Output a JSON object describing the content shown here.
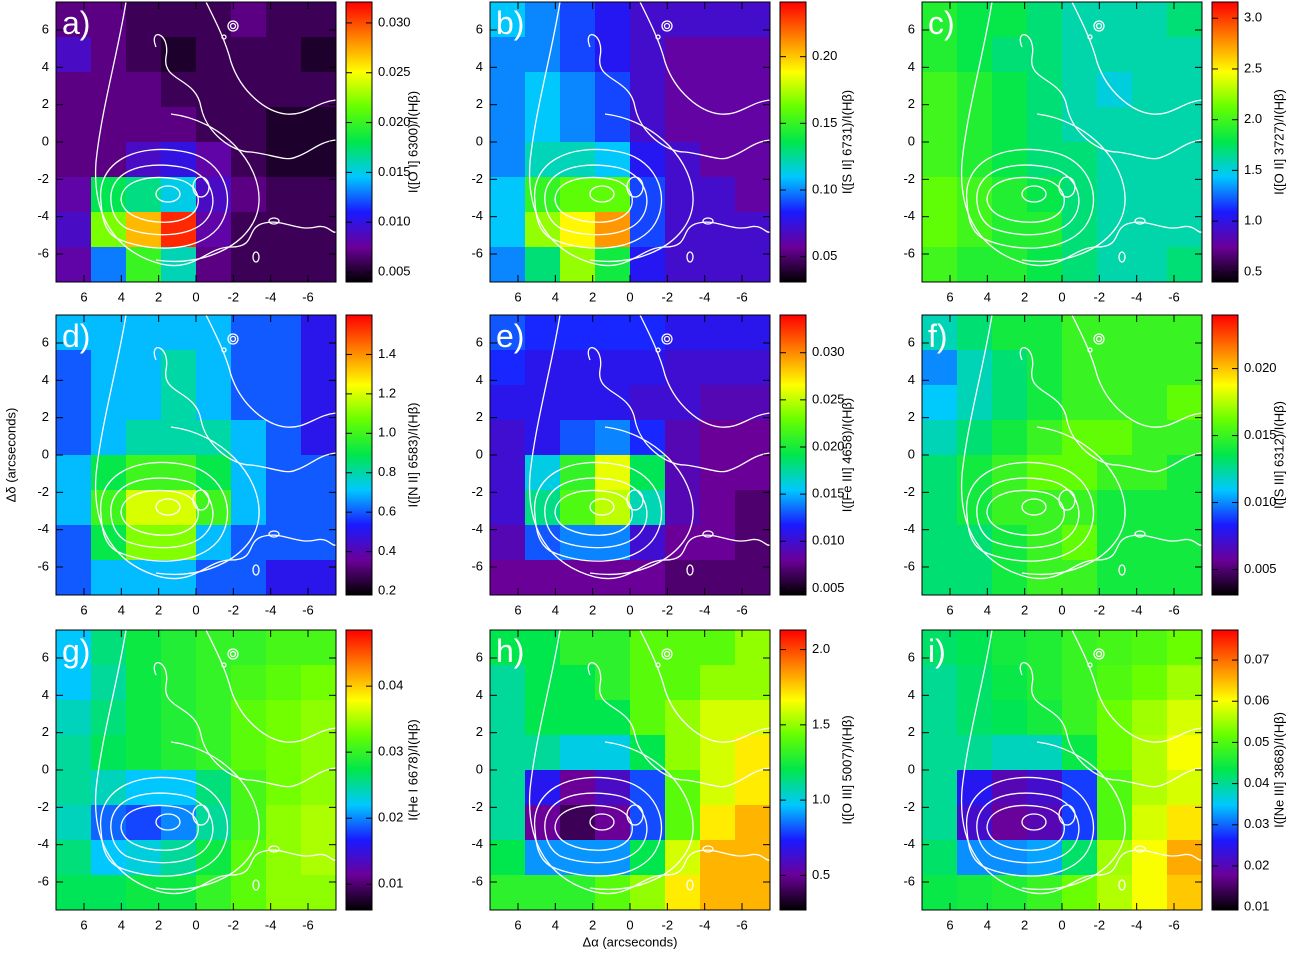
{
  "chart_data": [
    {
      "type": "heatmap",
      "panel_label": "a)",
      "colorbar_label": "I([O I] 6300)/I(Hβ)",
      "xlim": [
        7.5,
        -7.5
      ],
      "ylim": [
        -7.5,
        7.5
      ],
      "xticks": [
        6,
        4,
        2,
        0,
        -2,
        -4,
        -6
      ],
      "yticks": [
        -6,
        -4,
        -2,
        0,
        2,
        4,
        6
      ],
      "clim": [
        0.004,
        0.0321
      ],
      "cticks": [
        0.005,
        {
          "value": 0.01,
          "label": "0.010"
        },
        0.015,
        {
          "value": 0.02,
          "label": "0.020"
        },
        0.025,
        {
          "value": 0.03,
          "label": "0.030"
        }
      ],
      "colormap": [
        "#000000",
        "#6b0099",
        "#1a1aff",
        "#00c8ff",
        "#00e64d",
        "#66ff00",
        "#ffff00",
        "#ff8000",
        "#ff0000"
      ],
      "values": [
        [
          0.007,
          0.007,
          0.006,
          0.006,
          0.006,
          0.007,
          0.006,
          0.006
        ],
        [
          0.009,
          0.007,
          0.006,
          0.005,
          0.006,
          0.006,
          0.006,
          0.005
        ],
        [
          0.007,
          0.007,
          0.007,
          0.006,
          0.006,
          0.006,
          0.006,
          0.006
        ],
        [
          0.007,
          0.007,
          0.007,
          0.007,
          0.006,
          0.006,
          0.005,
          0.005
        ],
        [
          0.007,
          0.007,
          0.009,
          0.01,
          0.008,
          0.006,
          0.005,
          0.005
        ],
        [
          0.008,
          0.018,
          0.017,
          0.015,
          0.009,
          0.007,
          0.006,
          0.006
        ],
        [
          0.009,
          0.022,
          0.027,
          0.031,
          0.008,
          0.006,
          0.006,
          0.006
        ],
        [
          0.008,
          0.013,
          0.02,
          0.016,
          0.007,
          0.006,
          0.006,
          0.006
        ]
      ]
    },
    {
      "type": "heatmap",
      "panel_label": "b)",
      "colorbar_label": "I([S II] 6731)/I(Hβ)",
      "xlim": [
        7.5,
        -7.5
      ],
      "ylim": [
        -7.5,
        7.5
      ],
      "xticks": [
        6,
        4,
        2,
        0,
        -2,
        -4,
        -6
      ],
      "yticks": [
        -6,
        -4,
        -2,
        0,
        2,
        4,
        6
      ],
      "clim": [
        0.031,
        0.241
      ],
      "cticks": [
        0.05,
        {
          "value": 0.1,
          "label": "0.10"
        },
        0.15,
        {
          "value": 0.2,
          "label": "0.20"
        }
      ],
      "colormap": [
        "#000000",
        "#6b0099",
        "#1a1aff",
        "#00c8ff",
        "#00e64d",
        "#66ff00",
        "#ffff00",
        "#ff8000",
        "#ff0000"
      ],
      "values": [
        [
          0.11,
          0.1,
          0.09,
          0.08,
          0.07,
          0.07,
          0.07,
          0.07
        ],
        [
          0.1,
          0.1,
          0.09,
          0.08,
          0.07,
          0.06,
          0.06,
          0.06
        ],
        [
          0.1,
          0.11,
          0.1,
          0.09,
          0.07,
          0.06,
          0.06,
          0.06
        ],
        [
          0.1,
          0.11,
          0.1,
          0.09,
          0.07,
          0.06,
          0.06,
          0.06
        ],
        [
          0.1,
          0.12,
          0.12,
          0.11,
          0.08,
          0.07,
          0.06,
          0.06
        ],
        [
          0.11,
          0.15,
          0.16,
          0.16,
          0.09,
          0.07,
          0.07,
          0.06
        ],
        [
          0.11,
          0.17,
          0.19,
          0.21,
          0.09,
          0.07,
          0.07,
          0.07
        ],
        [
          0.1,
          0.13,
          0.17,
          0.14,
          0.08,
          0.07,
          0.07,
          0.07
        ]
      ]
    },
    {
      "type": "heatmap",
      "panel_label": "c)",
      "colorbar_label": "I([O II] 3727)/I(Hβ)",
      "xlim": [
        7.5,
        -7.5
      ],
      "ylim": [
        -7.5,
        7.5
      ],
      "xticks": [
        6,
        4,
        2,
        0,
        -2,
        -4,
        -6
      ],
      "yticks": [
        -6,
        -4,
        -2,
        0,
        2,
        4,
        6
      ],
      "clim": [
        0.4,
        3.16
      ],
      "cticks": [
        0.5,
        {
          "value": 1,
          "label": "1.0"
        },
        1.5,
        {
          "value": 2,
          "label": "2.0"
        },
        2.5,
        {
          "value": 3,
          "label": "3.0"
        }
      ],
      "colormap": [
        "#000000",
        "#6b0099",
        "#1a1aff",
        "#00c8ff",
        "#00e64d",
        "#66ff00",
        "#ffff00",
        "#ff8000",
        "#ff0000"
      ],
      "values": [
        [
          1.9,
          1.8,
          1.8,
          1.7,
          1.6,
          1.6,
          1.6,
          1.7
        ],
        [
          1.9,
          1.8,
          1.7,
          1.7,
          1.6,
          1.6,
          1.6,
          1.6
        ],
        [
          2.0,
          1.9,
          1.8,
          1.7,
          1.6,
          1.5,
          1.6,
          1.6
        ],
        [
          2.0,
          1.9,
          1.8,
          1.7,
          1.6,
          1.6,
          1.6,
          1.6
        ],
        [
          2.0,
          1.9,
          1.8,
          1.7,
          1.7,
          1.6,
          1.6,
          1.6
        ],
        [
          2.1,
          2.0,
          1.9,
          1.8,
          1.7,
          1.6,
          1.6,
          1.6
        ],
        [
          2.1,
          2.0,
          1.9,
          1.9,
          1.7,
          1.6,
          1.6,
          1.6
        ],
        [
          2.0,
          1.9,
          1.9,
          1.8,
          1.7,
          1.6,
          1.6,
          1.7
        ]
      ]
    },
    {
      "type": "heatmap",
      "panel_label": "d)",
      "colorbar_label": "I([N II] 6583)/I(Hβ)",
      "ylabel": "Δδ (arcseconds)",
      "xlim": [
        7.5,
        -7.5
      ],
      "ylim": [
        -7.5,
        7.5
      ],
      "xticks": [
        6,
        4,
        2,
        0,
        -2,
        -4,
        -6
      ],
      "yticks": [
        -6,
        -4,
        -2,
        0,
        2,
        4,
        6
      ],
      "clim": [
        0.18,
        1.6
      ],
      "cticks": [
        0.2,
        0.4,
        0.6,
        0.8,
        {
          "value": 1,
          "label": "1.0"
        },
        1.2,
        1.4
      ],
      "colormap": [
        "#000000",
        "#6b0099",
        "#1a1aff",
        "#00c8ff",
        "#00e64d",
        "#66ff00",
        "#ffff00",
        "#ff8000",
        "#ff0000"
      ],
      "values": [
        [
          0.7,
          0.7,
          0.7,
          0.7,
          0.7,
          0.6,
          0.6,
          0.5
        ],
        [
          0.6,
          0.7,
          0.7,
          0.8,
          0.7,
          0.6,
          0.6,
          0.5
        ],
        [
          0.6,
          0.7,
          0.7,
          0.8,
          0.7,
          0.6,
          0.6,
          0.5
        ],
        [
          0.6,
          0.7,
          0.8,
          0.8,
          0.8,
          0.7,
          0.6,
          0.5
        ],
        [
          0.7,
          0.9,
          1.0,
          1.0,
          0.9,
          0.7,
          0.6,
          0.6
        ],
        [
          0.7,
          1.0,
          1.2,
          1.2,
          1.0,
          0.7,
          0.6,
          0.6
        ],
        [
          0.6,
          0.9,
          1.1,
          1.1,
          0.7,
          0.6,
          0.6,
          0.6
        ],
        [
          0.6,
          0.7,
          0.7,
          0.7,
          0.6,
          0.6,
          0.5,
          0.5
        ]
      ]
    },
    {
      "type": "heatmap",
      "panel_label": "e)",
      "colorbar_label": "I([Fe III] 4658)/I(Hβ)",
      "xlim": [
        7.5,
        -7.5
      ],
      "ylim": [
        -7.5,
        7.5
      ],
      "xticks": [
        6,
        4,
        2,
        0,
        -2,
        -4,
        -6
      ],
      "yticks": [
        -6,
        -4,
        -2,
        0,
        2,
        4,
        6
      ],
      "clim": [
        0.0043,
        0.034
      ],
      "cticks": [
        0.005,
        {
          "value": 0.01,
          "label": "0.010"
        },
        0.015,
        {
          "value": 0.02,
          "label": "0.020"
        },
        0.025,
        {
          "value": 0.03,
          "label": "0.030"
        }
      ],
      "colormap": [
        "#000000",
        "#6b0099",
        "#1a1aff",
        "#00c8ff",
        "#00e64d",
        "#66ff00",
        "#ffff00",
        "#ff8000",
        "#ff0000"
      ],
      "values": [
        [
          0.013,
          0.012,
          0.012,
          0.012,
          0.012,
          0.011,
          0.011,
          0.011
        ],
        [
          0.012,
          0.011,
          0.011,
          0.011,
          0.011,
          0.01,
          0.01,
          0.01
        ],
        [
          0.011,
          0.011,
          0.011,
          0.011,
          0.01,
          0.01,
          0.009,
          0.009
        ],
        [
          0.01,
          0.011,
          0.013,
          0.014,
          0.012,
          0.009,
          0.008,
          0.008
        ],
        [
          0.01,
          0.016,
          0.021,
          0.026,
          0.019,
          0.009,
          0.008,
          0.008
        ],
        [
          0.01,
          0.018,
          0.022,
          0.025,
          0.017,
          0.009,
          0.008,
          0.007
        ],
        [
          0.009,
          0.013,
          0.014,
          0.014,
          0.01,
          0.008,
          0.008,
          0.007
        ],
        [
          0.008,
          0.008,
          0.008,
          0.008,
          0.008,
          0.007,
          0.007,
          0.007
        ]
      ]
    },
    {
      "type": "heatmap",
      "panel_label": "f)",
      "colorbar_label": "I([S III] 6312)/I(Hβ)",
      "xlim": [
        7.5,
        -7.5
      ],
      "ylim": [
        -7.5,
        7.5
      ],
      "xticks": [
        6,
        4,
        2,
        0,
        -2,
        -4,
        -6
      ],
      "yticks": [
        -6,
        -4,
        -2,
        0,
        2,
        4,
        6
      ],
      "clim": [
        0.0031,
        0.024
      ],
      "cticks": [
        0.005,
        {
          "value": 0.01,
          "label": "0.010"
        },
        0.015,
        {
          "value": 0.02,
          "label": "0.020"
        }
      ],
      "colormap": [
        "#000000",
        "#6b0099",
        "#1a1aff",
        "#00c8ff",
        "#00e64d",
        "#66ff00",
        "#ffff00",
        "#ff8000",
        "#ff0000"
      ],
      "values": [
        [
          0.012,
          0.013,
          0.014,
          0.014,
          0.015,
          0.015,
          0.015,
          0.015
        ],
        [
          0.01,
          0.012,
          0.013,
          0.014,
          0.015,
          0.015,
          0.015,
          0.015
        ],
        [
          0.011,
          0.012,
          0.013,
          0.014,
          0.015,
          0.015,
          0.015,
          0.016
        ],
        [
          0.012,
          0.013,
          0.014,
          0.015,
          0.016,
          0.016,
          0.015,
          0.015
        ],
        [
          0.013,
          0.014,
          0.015,
          0.016,
          0.016,
          0.015,
          0.015,
          0.014
        ],
        [
          0.013,
          0.014,
          0.015,
          0.015,
          0.015,
          0.014,
          0.014,
          0.014
        ],
        [
          0.013,
          0.013,
          0.014,
          0.015,
          0.016,
          0.014,
          0.014,
          0.014
        ],
        [
          0.013,
          0.013,
          0.014,
          0.015,
          0.015,
          0.014,
          0.014,
          0.014
        ]
      ]
    },
    {
      "type": "heatmap",
      "panel_label": "g)",
      "colorbar_label": "I(He I 6678)/I(Hβ)",
      "xlim": [
        7.5,
        -7.5
      ],
      "ylim": [
        -7.5,
        7.5
      ],
      "xticks": [
        6,
        4,
        2,
        0,
        -2,
        -4,
        -6
      ],
      "yticks": [
        -6,
        -4,
        -2,
        0,
        2,
        4,
        6
      ],
      "clim": [
        0.0061,
        0.0485
      ],
      "cticks": [
        0.01,
        0.02,
        0.03,
        0.04
      ],
      "colormap": [
        "#000000",
        "#6b0099",
        "#1a1aff",
        "#00c8ff",
        "#00e64d",
        "#66ff00",
        "#ffff00",
        "#ff8000",
        "#ff0000"
      ],
      "values": [
        [
          0.022,
          0.026,
          0.028,
          0.029,
          0.03,
          0.03,
          0.031,
          0.031
        ],
        [
          0.022,
          0.025,
          0.028,
          0.029,
          0.03,
          0.031,
          0.032,
          0.033
        ],
        [
          0.024,
          0.026,
          0.028,
          0.029,
          0.03,
          0.032,
          0.033,
          0.034
        ],
        [
          0.025,
          0.027,
          0.028,
          0.029,
          0.03,
          0.032,
          0.033,
          0.034
        ],
        [
          0.025,
          0.024,
          0.022,
          0.022,
          0.026,
          0.031,
          0.033,
          0.034
        ],
        [
          0.024,
          0.019,
          0.018,
          0.02,
          0.025,
          0.031,
          0.034,
          0.035
        ],
        [
          0.026,
          0.022,
          0.023,
          0.025,
          0.028,
          0.032,
          0.034,
          0.035
        ],
        [
          0.027,
          0.027,
          0.028,
          0.028,
          0.03,
          0.032,
          0.034,
          0.034
        ]
      ]
    },
    {
      "type": "heatmap",
      "panel_label": "h)",
      "colorbar_label": "I([O III] 5007)/I(Hβ)",
      "xlabel": "Δα (arcseconds)",
      "xlim": [
        7.5,
        -7.5
      ],
      "ylim": [
        -7.5,
        7.5
      ],
      "xticks": [
        6,
        4,
        2,
        0,
        -2,
        -4,
        -6
      ],
      "yticks": [
        -6,
        -4,
        -2,
        0,
        2,
        4,
        6
      ],
      "clim": [
        0.27,
        2.13
      ],
      "cticks": [
        0.5,
        {
          "value": 1,
          "label": "1.0"
        },
        1.5,
        {
          "value": 2,
          "label": "2.0"
        }
      ],
      "colormap": [
        "#000000",
        "#6b0099",
        "#1a1aff",
        "#00c8ff",
        "#00e64d",
        "#66ff00",
        "#ffff00",
        "#ff8000",
        "#ff0000"
      ],
      "values": [
        [
          1.2,
          1.2,
          1.3,
          1.3,
          1.4,
          1.4,
          1.4,
          1.5
        ],
        [
          1.1,
          1.2,
          1.2,
          1.3,
          1.4,
          1.4,
          1.5,
          1.5
        ],
        [
          1.1,
          1.2,
          1.2,
          1.2,
          1.4,
          1.5,
          1.6,
          1.6
        ],
        [
          1.1,
          1.1,
          1.0,
          1.0,
          1.2,
          1.5,
          1.6,
          1.7
        ],
        [
          1.1,
          0.7,
          0.5,
          0.6,
          0.8,
          1.4,
          1.6,
          1.7
        ],
        [
          1.1,
          0.5,
          0.4,
          0.5,
          0.8,
          1.4,
          1.7,
          1.8
        ],
        [
          1.2,
          0.9,
          0.9,
          0.9,
          1.2,
          1.6,
          1.8,
          1.8
        ],
        [
          1.3,
          1.3,
          1.3,
          1.4,
          1.5,
          1.7,
          1.8,
          1.8
        ]
      ]
    },
    {
      "type": "heatmap",
      "panel_label": "i)",
      "colorbar_label": "I([Ne III] 3868)/I(Hβ)",
      "xlim": [
        7.5,
        -7.5
      ],
      "ylim": [
        -7.5,
        7.5
      ],
      "xticks": [
        6,
        4,
        2,
        0,
        -2,
        -4,
        -6
      ],
      "yticks": [
        -6,
        -4,
        -2,
        0,
        2,
        4,
        6
      ],
      "clim": [
        0.0093,
        0.0773
      ],
      "cticks": [
        0.01,
        0.02,
        0.03,
        0.04,
        0.05,
        0.06,
        0.07
      ],
      "colormap": [
        "#000000",
        "#6b0099",
        "#1a1aff",
        "#00c8ff",
        "#00e64d",
        "#66ff00",
        "#ffff00",
        "#ff8000",
        "#ff0000"
      ],
      "values": [
        [
          0.042,
          0.043,
          0.045,
          0.046,
          0.048,
          0.049,
          0.05,
          0.052
        ],
        [
          0.04,
          0.042,
          0.044,
          0.046,
          0.048,
          0.05,
          0.052,
          0.055
        ],
        [
          0.04,
          0.042,
          0.043,
          0.045,
          0.048,
          0.052,
          0.055,
          0.058
        ],
        [
          0.04,
          0.04,
          0.038,
          0.038,
          0.044,
          0.052,
          0.056,
          0.06
        ],
        [
          0.04,
          0.025,
          0.02,
          0.022,
          0.028,
          0.05,
          0.056,
          0.058
        ],
        [
          0.04,
          0.022,
          0.018,
          0.02,
          0.028,
          0.05,
          0.058,
          0.062
        ],
        [
          0.042,
          0.032,
          0.032,
          0.033,
          0.042,
          0.055,
          0.06,
          0.066
        ],
        [
          0.044,
          0.045,
          0.046,
          0.048,
          0.052,
          0.056,
          0.06,
          0.064
        ]
      ]
    }
  ]
}
